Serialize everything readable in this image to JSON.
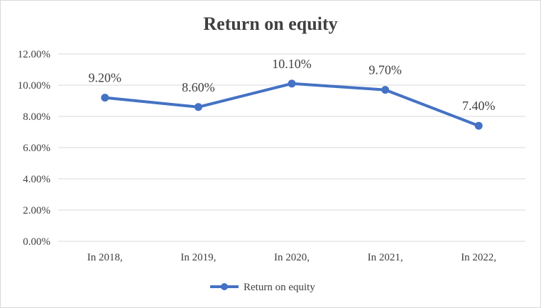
{
  "chart_data": {
    "type": "line",
    "title": "Return on equity",
    "xlabel": "",
    "ylabel": "",
    "categories": [
      "In 2018,",
      "In 2019,",
      "In 2020,",
      "In 2021,",
      "In 2022,"
    ],
    "series": [
      {
        "name": "Return on equity",
        "values": [
          9.2,
          8.6,
          10.1,
          9.7,
          7.4
        ],
        "data_labels": [
          "9.20%",
          "8.60%",
          "10.10%",
          "9.70%",
          "7.40%"
        ]
      }
    ],
    "y_ticks": [
      0,
      2,
      4,
      6,
      8,
      10,
      12
    ],
    "y_tick_labels": [
      "0.00%",
      "2.00%",
      "4.00%",
      "6.00%",
      "8.00%",
      "10.00%",
      "12.00%"
    ],
    "ylim": [
      0,
      12
    ],
    "grid": true,
    "legend_position": "bottom",
    "colors": {
      "series": "#4472c4",
      "grid": "#d9d9d9",
      "text": "#404040"
    }
  }
}
